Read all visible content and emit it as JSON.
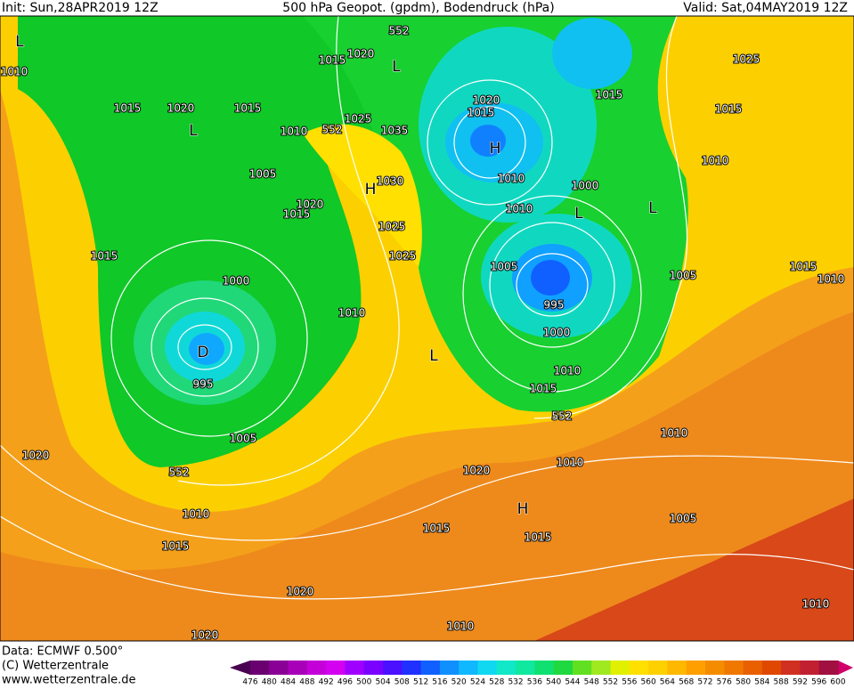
{
  "header": {
    "init": "Init: Sun,28APR2019 12Z",
    "title": "500 hPa Geopot. (gpdm), Bodendruck (hPa)",
    "valid": "Valid: Sat,04MAY2019 12Z"
  },
  "map_labels": [
    "552",
    "1015",
    "1020",
    "L",
    "1010",
    "L",
    "1015",
    "1020",
    "1015",
    "L",
    "1010",
    "552",
    "1025",
    "1035",
    "1005",
    "1030",
    "H",
    "1020",
    "1015",
    "1025",
    "1025",
    "1015",
    "1000",
    "1010",
    "D",
    "995",
    "L",
    "1005",
    "552",
    "1020",
    "1010",
    "1015",
    "1020",
    "1020",
    "1010",
    "1015",
    "1015",
    "H",
    "1020",
    "1010",
    "1005",
    "1010",
    "552",
    "1015",
    "1010",
    "1000",
    "995",
    "1005",
    "1010",
    "L",
    "1000",
    "L",
    "1010",
    "H",
    "1015",
    "1020",
    "1015",
    "1025",
    "1015",
    "1010",
    "1015",
    "1010",
    "1005",
    "1010"
  ],
  "footer": {
    "data": "Data: ECMWF   0.500°",
    "copyright": "(C) Wetterzentrale",
    "url": "www.wetterzentrale.de"
  },
  "colorbar": {
    "ticks": [
      476,
      480,
      484,
      488,
      492,
      496,
      500,
      504,
      508,
      512,
      516,
      520,
      524,
      528,
      532,
      536,
      540,
      544,
      548,
      552,
      556,
      560,
      564,
      568,
      572,
      576,
      580,
      584,
      588,
      592,
      596,
      600
    ],
    "colors": [
      "#6a0070",
      "#8a0096",
      "#a800b8",
      "#c400d8",
      "#d400f0",
      "#a000ff",
      "#7a00ff",
      "#4a10ff",
      "#2030ff",
      "#1060ff",
      "#1090ff",
      "#10b8ff",
      "#10d8f0",
      "#10e8c8",
      "#10e8a0",
      "#10e070",
      "#20d840",
      "#60e020",
      "#a0e820",
      "#e0f000",
      "#ffe000",
      "#ffd000",
      "#ffb800",
      "#ffa000",
      "#f58c00",
      "#f07800",
      "#e86000",
      "#e04800",
      "#d03020",
      "#c02030",
      "#a01040"
    ]
  }
}
